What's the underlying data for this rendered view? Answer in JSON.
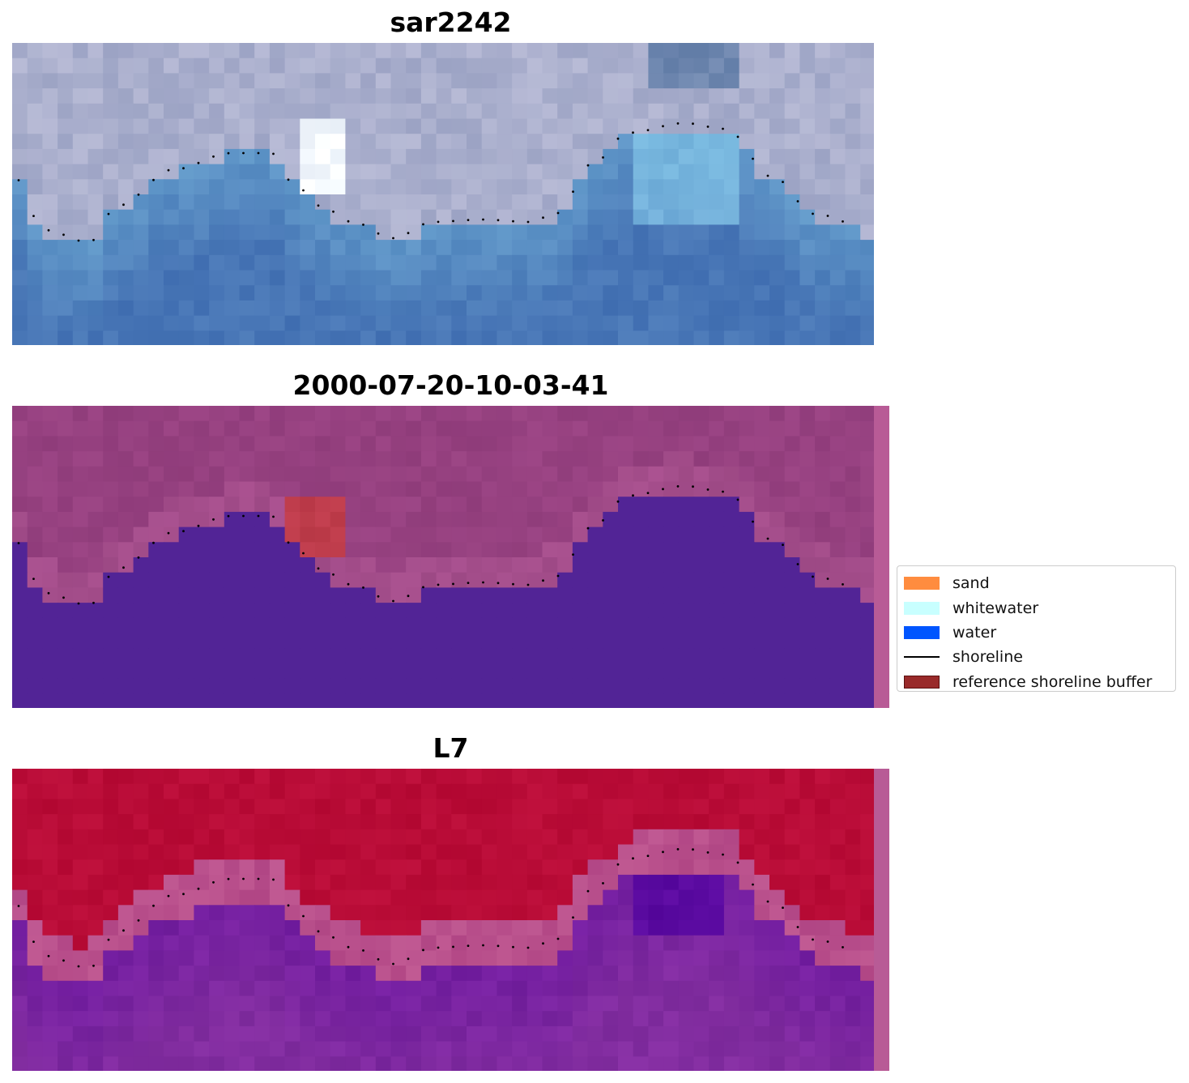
{
  "panels": [
    {
      "title": "sar2242",
      "palette": "rgb"
    },
    {
      "title": "2000-07-20-10-03-41",
      "palette": "classified"
    },
    {
      "title": "L7",
      "palette": "index"
    }
  ],
  "legend": {
    "items": [
      {
        "label": "sand",
        "color": "#ff8c3f",
        "kind": "patch"
      },
      {
        "label": "whitewater",
        "color": "#c8ffff",
        "kind": "patch"
      },
      {
        "label": "water",
        "color": "#0055ff",
        "kind": "patch"
      },
      {
        "label": "shoreline",
        "color": "#000000",
        "kind": "line"
      },
      {
        "label": "reference shoreline buffer",
        "color": "#992a2a",
        "kind": "patch"
      }
    ]
  }
}
